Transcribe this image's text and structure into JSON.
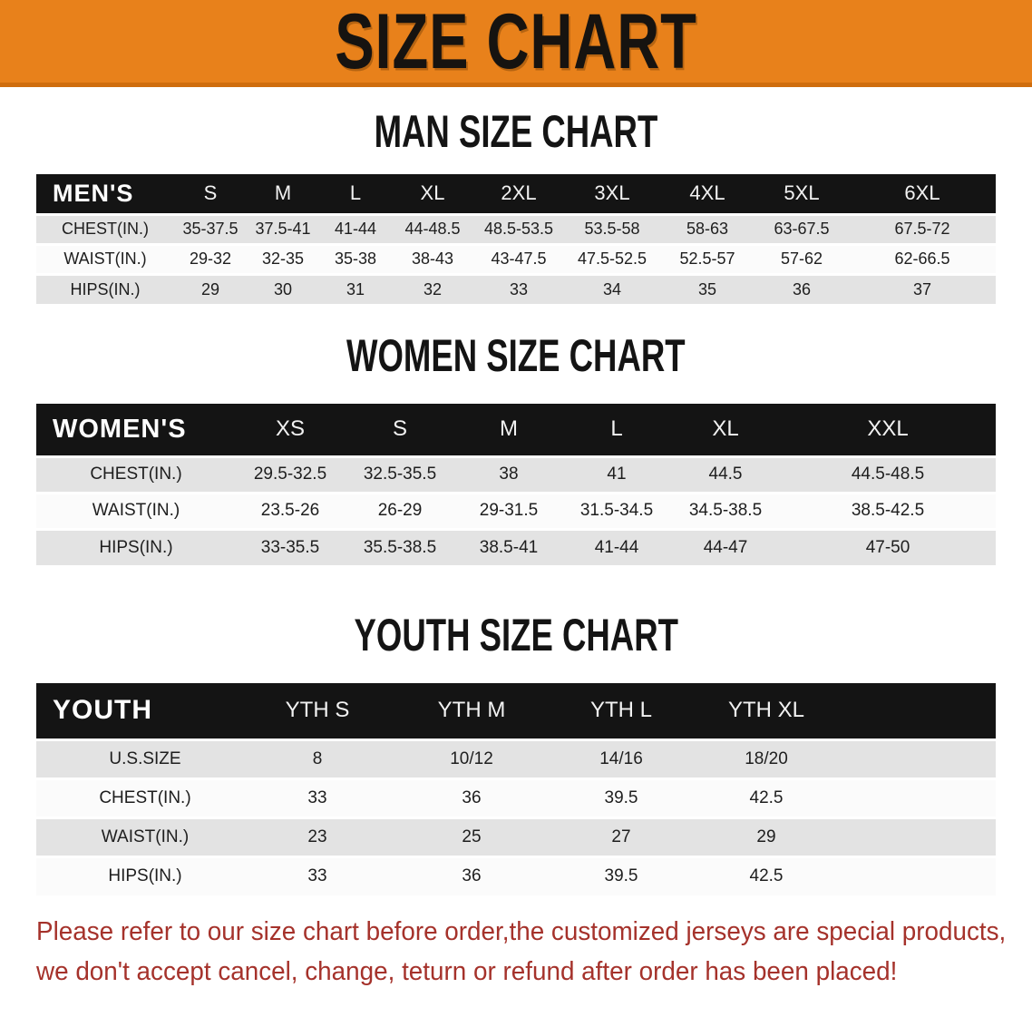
{
  "banner": {
    "title": "SIZE CHART",
    "background_color": "#e8811b",
    "text_color": "#161310"
  },
  "sections": [
    {
      "heading": "MAN SIZE CHART",
      "table": {
        "label": "MEN'S",
        "sizes": [
          "S",
          "M",
          "L",
          "XL",
          "2XL",
          "3XL",
          "4XL",
          "5XL",
          "6XL"
        ],
        "rows": [
          {
            "label": "CHEST(IN.)",
            "values": [
              "35-37.5",
              "37.5-41",
              "41-44",
              "44-48.5",
              "48.5-53.5",
              "53.5-58",
              "58-63",
              "63-67.5",
              "67.5-72"
            ]
          },
          {
            "label": "WAIST(IN.)",
            "values": [
              "29-32",
              "32-35",
              "35-38",
              "38-43",
              "43-47.5",
              "47.5-52.5",
              "52.5-57",
              "57-62",
              "62-66.5"
            ]
          },
          {
            "label": "HIPS(IN.)",
            "values": [
              "29",
              "30",
              "31",
              "32",
              "33",
              "34",
              "35",
              "36",
              "37"
            ]
          }
        ]
      }
    },
    {
      "heading": "WOMEN SIZE CHART",
      "table": {
        "label": "WOMEN'S",
        "sizes": [
          "XS",
          "S",
          "M",
          "L",
          "XL",
          "XXL"
        ],
        "rows": [
          {
            "label": "CHEST(IN.)",
            "values": [
              "29.5-32.5",
              "32.5-35.5",
              "38",
              "41",
              "44.5",
              "44.5-48.5"
            ]
          },
          {
            "label": "WAIST(IN.)",
            "values": [
              "23.5-26",
              "26-29",
              "29-31.5",
              "31.5-34.5",
              "34.5-38.5",
              "38.5-42.5"
            ]
          },
          {
            "label": "HIPS(IN.)",
            "values": [
              "33-35.5",
              "35.5-38.5",
              "38.5-41",
              "41-44",
              "44-47",
              "47-50"
            ]
          }
        ]
      }
    },
    {
      "heading": "YOUTH SIZE CHART",
      "table": {
        "label": "YOUTH",
        "sizes": [
          "YTH S",
          "YTH M",
          "YTH L",
          "YTH XL"
        ],
        "rows": [
          {
            "label": "U.S.SIZE",
            "values": [
              "8",
              "10/12",
              "14/16",
              "18/20"
            ]
          },
          {
            "label": "CHEST(IN.)",
            "values": [
              "33",
              "36",
              "39.5",
              "42.5"
            ]
          },
          {
            "label": "WAIST(IN.)",
            "values": [
              "23",
              "25",
              "27",
              "29"
            ]
          },
          {
            "label": "HIPS(IN.)",
            "values": [
              "33",
              "36",
              "39.5",
              "42.5"
            ]
          }
        ]
      }
    }
  ],
  "disclaimer": {
    "line1": "Please refer to our size chart before order,the customized jerseys are special products,",
    "line2": "we don't accept cancel, change, teturn or refund after order has been placed!",
    "color": "#a5322b"
  }
}
